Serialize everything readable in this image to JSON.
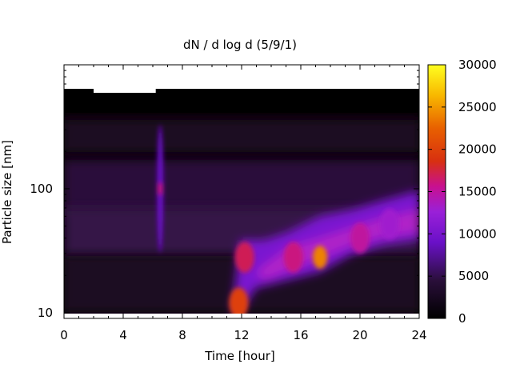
{
  "chart_data": {
    "type": "heatmap",
    "title": "dN / d log d (5/9/1)",
    "xlabel": "Time [hour]",
    "ylabel": "Particle size [nm]",
    "x_ticks": [
      0,
      4,
      8,
      12,
      16,
      20,
      24
    ],
    "x_tick_labels": [
      "0",
      "4",
      "8",
      "12",
      "16",
      "20",
      "24"
    ],
    "xlim": [
      0,
      24
    ],
    "y_scale": "log",
    "ylim": [
      9,
      1000
    ],
    "y_ticks": [
      10,
      100
    ],
    "y_tick_labels": [
      "10",
      "100"
    ],
    "colorbar": {
      "ticks": [
        0,
        5000,
        10000,
        15000,
        20000,
        25000,
        30000
      ],
      "tick_labels": [
        "0",
        "5000",
        "10000",
        "15000",
        "20000",
        "25000",
        "30000"
      ],
      "range": [
        0,
        30000
      ],
      "colormap": "gnuplot (black-purple-red-yellow)"
    },
    "features": [
      {
        "t": 6.5,
        "d": 100,
        "value": 16000
      },
      {
        "t": 11.8,
        "d": 12,
        "value": 20000
      },
      {
        "t": 12.2,
        "d": 28,
        "value": 17000
      },
      {
        "t": 17.3,
        "d": 28,
        "value": 24000
      },
      {
        "t": 15.5,
        "d": 28,
        "value": 16000
      },
      {
        "t": 20.0,
        "d": 40,
        "value": 15000
      },
      {
        "t": 22.0,
        "d": 52,
        "value": 13000
      }
    ],
    "grid": false
  }
}
